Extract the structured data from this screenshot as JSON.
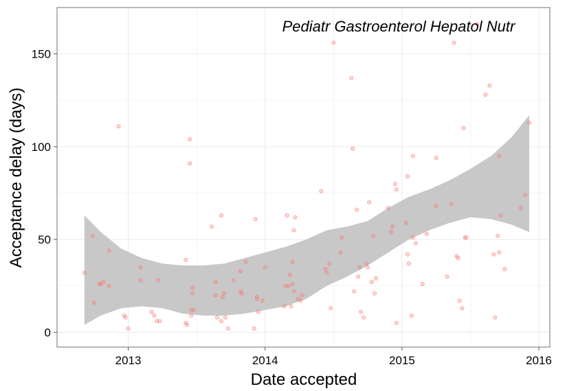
{
  "chart_data": {
    "type": "scatter",
    "title": "",
    "annotation": "Pediatr Gastroenterol Hepatol Nutr",
    "xlabel": "Date accepted",
    "ylabel": "Acceptance delay (days)",
    "xlim": [
      2012.48,
      2016.08
    ],
    "ylim": [
      -8,
      175
    ],
    "x_ticks": [
      2013,
      2014,
      2015,
      2016
    ],
    "x_tick_labels": [
      "2013",
      "2014",
      "2015",
      "2016"
    ],
    "y_ticks": [
      0,
      50,
      100,
      150
    ],
    "y_tick_labels": [
      "0",
      "50",
      "100",
      "150"
    ],
    "grid": true,
    "colors": {
      "points": "#f8766d",
      "ribbon": "#c8c8c8",
      "grid": "#ebebeb",
      "frame": "#888888"
    },
    "points": [
      [
        2012.68,
        32
      ],
      [
        2012.74,
        52
      ],
      [
        2012.75,
        16
      ],
      [
        2012.79,
        26
      ],
      [
        2012.8,
        26
      ],
      [
        2012.82,
        27
      ],
      [
        2012.86,
        44
      ],
      [
        2012.86,
        25
      ],
      [
        2012.93,
        111
      ],
      [
        2012.97,
        9
      ],
      [
        2012.98,
        8
      ],
      [
        2013.0,
        2
      ],
      [
        2013.09,
        35
      ],
      [
        2013.09,
        28
      ],
      [
        2013.17,
        11
      ],
      [
        2013.19,
        9
      ],
      [
        2013.21,
        6
      ],
      [
        2013.22,
        28
      ],
      [
        2013.23,
        6
      ],
      [
        2013.42,
        39
      ],
      [
        2013.42,
        5
      ],
      [
        2013.43,
        4
      ],
      [
        2013.45,
        104
      ],
      [
        2013.45,
        91
      ],
      [
        2013.46,
        12
      ],
      [
        2013.46,
        9
      ],
      [
        2013.47,
        24
      ],
      [
        2013.47,
        21
      ],
      [
        2013.48,
        12
      ],
      [
        2013.61,
        57
      ],
      [
        2013.64,
        27
      ],
      [
        2013.64,
        20
      ],
      [
        2013.65,
        8
      ],
      [
        2013.68,
        63
      ],
      [
        2013.68,
        6
      ],
      [
        2013.69,
        19
      ],
      [
        2013.7,
        21
      ],
      [
        2013.71,
        8
      ],
      [
        2013.73,
        2
      ],
      [
        2013.77,
        28
      ],
      [
        2013.82,
        33
      ],
      [
        2013.82,
        22
      ],
      [
        2013.83,
        21
      ],
      [
        2013.86,
        38
      ],
      [
        2013.92,
        2
      ],
      [
        2013.93,
        61
      ],
      [
        2013.94,
        19
      ],
      [
        2013.94,
        18
      ],
      [
        2013.95,
        11
      ],
      [
        2013.98,
        17
      ],
      [
        2014.0,
        35
      ],
      [
        2014.14,
        14
      ],
      [
        2014.15,
        25
      ],
      [
        2014.16,
        63
      ],
      [
        2014.17,
        25
      ],
      [
        2014.18,
        31
      ],
      [
        2014.19,
        14
      ],
      [
        2014.2,
        38
      ],
      [
        2014.2,
        26
      ],
      [
        2014.21,
        22
      ],
      [
        2014.21,
        55
      ],
      [
        2014.22,
        62
      ],
      [
        2014.24,
        18
      ],
      [
        2014.26,
        17
      ],
      [
        2014.27,
        20
      ],
      [
        2014.41,
        76
      ],
      [
        2014.44,
        34
      ],
      [
        2014.45,
        32
      ],
      [
        2014.47,
        37
      ],
      [
        2014.48,
        13
      ],
      [
        2014.5,
        156
      ],
      [
        2014.55,
        43
      ],
      [
        2014.56,
        51
      ],
      [
        2014.63,
        137
      ],
      [
        2014.64,
        99
      ],
      [
        2014.65,
        22
      ],
      [
        2014.67,
        66
      ],
      [
        2014.68,
        30
      ],
      [
        2014.69,
        35
      ],
      [
        2014.7,
        11
      ],
      [
        2014.72,
        8
      ],
      [
        2014.74,
        37
      ],
      [
        2014.75,
        35
      ],
      [
        2014.76,
        70
      ],
      [
        2014.78,
        27
      ],
      [
        2014.79,
        52
      ],
      [
        2014.8,
        21
      ],
      [
        2014.81,
        29
      ],
      [
        2014.9,
        67
      ],
      [
        2014.92,
        54
      ],
      [
        2014.93,
        57
      ],
      [
        2014.95,
        80
      ],
      [
        2014.96,
        77
      ],
      [
        2014.96,
        5
      ],
      [
        2015.03,
        59
      ],
      [
        2015.04,
        84
      ],
      [
        2015.04,
        42
      ],
      [
        2015.05,
        37
      ],
      [
        2015.07,
        9
      ],
      [
        2015.08,
        95
      ],
      [
        2015.08,
        51
      ],
      [
        2015.1,
        48
      ],
      [
        2015.15,
        26
      ],
      [
        2015.18,
        53
      ],
      [
        2015.25,
        94
      ],
      [
        2015.25,
        68
      ],
      [
        2015.33,
        30
      ],
      [
        2015.36,
        69
      ],
      [
        2015.38,
        156
      ],
      [
        2015.4,
        41
      ],
      [
        2015.41,
        40
      ],
      [
        2015.42,
        17
      ],
      [
        2015.44,
        13
      ],
      [
        2015.45,
        110
      ],
      [
        2015.46,
        51
      ],
      [
        2015.47,
        51
      ],
      [
        2015.55,
        166
      ],
      [
        2015.61,
        128
      ],
      [
        2015.64,
        133
      ],
      [
        2015.67,
        42
      ],
      [
        2015.68,
        8
      ],
      [
        2015.7,
        52
      ],
      [
        2015.71,
        95
      ],
      [
        2015.71,
        43
      ],
      [
        2015.72,
        63
      ],
      [
        2015.75,
        34
      ],
      [
        2015.87,
        67
      ],
      [
        2015.9,
        74
      ],
      [
        2015.93,
        113
      ]
    ],
    "smooth": {
      "x": [
        2012.68,
        2012.8,
        2012.95,
        2013.1,
        2013.25,
        2013.4,
        2013.55,
        2013.7,
        2013.85,
        2014.0,
        2014.15,
        2014.3,
        2014.45,
        2014.6,
        2014.75,
        2014.9,
        2015.05,
        2015.2,
        2015.35,
        2015.5,
        2015.65,
        2015.8,
        2015.93
      ],
      "lower": [
        4,
        9,
        13,
        14,
        13,
        10,
        9,
        9,
        10,
        12,
        14,
        18,
        25,
        30,
        36,
        43,
        50,
        55,
        59,
        62,
        61,
        58,
        54
      ],
      "upper": [
        63,
        54,
        45,
        40,
        37,
        36,
        36,
        37,
        40,
        43,
        46,
        50,
        55,
        57,
        60,
        67,
        73,
        77,
        82,
        88,
        95,
        105,
        117
      ]
    }
  }
}
